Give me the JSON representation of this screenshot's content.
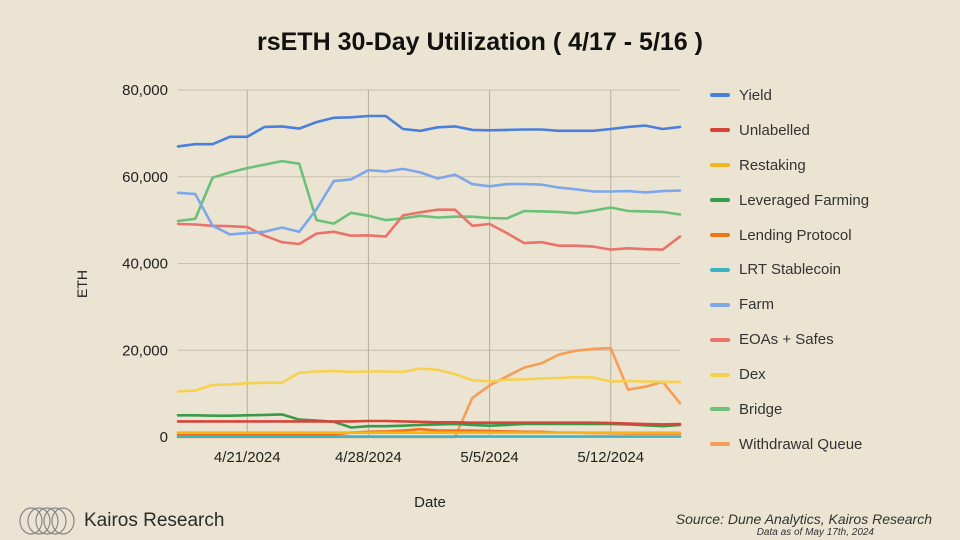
{
  "chart_data": {
    "type": "line",
    "title": "rsETH 30-Day Utilization ( 4/17 - 5/16 )",
    "xlabel": "Date",
    "ylabel": "ETH",
    "ylim": [
      0,
      80000
    ],
    "yticks": [
      0,
      20000,
      40000,
      60000,
      80000
    ],
    "ytick_labels": [
      "0",
      "20,000",
      "40,000",
      "60,000",
      "80,000"
    ],
    "x_start": "2024-04-17",
    "x_end": "2024-05-16",
    "x": [
      "4/17",
      "4/18",
      "4/19",
      "4/20",
      "4/21",
      "4/22",
      "4/23",
      "4/24",
      "4/25",
      "4/26",
      "4/27",
      "4/28",
      "4/29",
      "4/30",
      "5/1",
      "5/2",
      "5/3",
      "5/4",
      "5/5",
      "5/6",
      "5/7",
      "5/8",
      "5/9",
      "5/10",
      "5/11",
      "5/12",
      "5/13",
      "5/14",
      "5/15",
      "5/16"
    ],
    "xticks": [
      "4/21/2024",
      "4/28/2024",
      "5/5/2024",
      "5/12/2024"
    ],
    "grid": true,
    "legend_position": "right",
    "series": [
      {
        "name": "Yield",
        "color": "#4a7fdb",
        "values": [
          67000,
          67500,
          67500,
          69200,
          69200,
          71500,
          71600,
          71100,
          72600,
          73600,
          73700,
          74000,
          74000,
          71000,
          70600,
          71400,
          71600,
          70800,
          70700,
          70800,
          70900,
          70900,
          70600,
          70600,
          70600,
          71000,
          71500,
          71800,
          71000,
          71500
        ]
      },
      {
        "name": "Unlabelled",
        "color": "#d7443a",
        "values": [
          3600,
          3600,
          3600,
          3600,
          3600,
          3600,
          3600,
          3600,
          3600,
          3600,
          3600,
          3700,
          3700,
          3600,
          3500,
          3400,
          3400,
          3300,
          3300,
          3300,
          3300,
          3300,
          3300,
          3300,
          3300,
          3200,
          3100,
          3000,
          2900,
          3000
        ]
      },
      {
        "name": "Restaking",
        "color": "#f3b51a",
        "values": [
          1000,
          1000,
          1000,
          1000,
          1000,
          1000,
          1000,
          1000,
          1000,
          1000,
          1000,
          1000,
          1000,
          1000,
          1000,
          1000,
          1000,
          1000,
          1000,
          1000,
          1000,
          1000,
          1000,
          1000,
          1000,
          1000,
          1000,
          1000,
          1000,
          1000
        ]
      },
      {
        "name": "Leveraged Farming",
        "color": "#3a9a4c",
        "values": [
          5000,
          5000,
          4900,
          4900,
          5000,
          5100,
          5200,
          4000,
          3800,
          3500,
          2200,
          2500,
          2500,
          2600,
          2800,
          2900,
          3000,
          2800,
          2600,
          2800,
          3000,
          3000,
          3000,
          3000,
          3000,
          3000,
          2900,
          2700,
          2500,
          2800
        ]
      },
      {
        "name": "Lending Protocol",
        "color": "#ef7619",
        "values": [
          600,
          600,
          600,
          600,
          600,
          600,
          600,
          600,
          600,
          600,
          1000,
          1200,
          1300,
          1500,
          1800,
          1500,
          1500,
          1500,
          1400,
          1300,
          1200,
          1200,
          1000,
          1000,
          900,
          900,
          800,
          800,
          800,
          800
        ]
      },
      {
        "name": "LRT Stablecoin",
        "color": "#3cb4c4",
        "values": [
          100,
          100,
          100,
          100,
          100,
          100,
          100,
          100,
          100,
          100,
          100,
          100,
          100,
          100,
          100,
          100,
          100,
          100,
          100,
          100,
          100,
          100,
          100,
          100,
          100,
          100,
          100,
          100,
          100,
          100
        ]
      },
      {
        "name": "Farm",
        "color": "#7ea7ea",
        "values": [
          56300,
          56000,
          48700,
          46700,
          47000,
          47300,
          48300,
          47300,
          52500,
          59000,
          59400,
          61500,
          61200,
          61800,
          61000,
          59600,
          60500,
          58300,
          57800,
          58300,
          58300,
          58200,
          57500,
          57100,
          56600,
          56600,
          56700,
          56400,
          56700,
          56800
        ]
      },
      {
        "name": "EOAs + Safes",
        "color": "#e9736a",
        "values": [
          49100,
          49000,
          48700,
          48600,
          48400,
          46400,
          44900,
          44500,
          46900,
          47300,
          46400,
          46500,
          46200,
          51100,
          51800,
          52400,
          52400,
          48700,
          49100,
          47000,
          44700,
          44900,
          44100,
          44100,
          43900,
          43200,
          43500,
          43300,
          43200,
          46200
        ]
      },
      {
        "name": "Dex",
        "color": "#f6d04f",
        "values": [
          10500,
          10700,
          12000,
          12100,
          12400,
          12500,
          12500,
          14800,
          15100,
          15200,
          15000,
          15100,
          15100,
          15000,
          15800,
          15500,
          14500,
          13100,
          12800,
          13200,
          13300,
          13500,
          13600,
          13800,
          13700,
          12800,
          12900,
          12800,
          12700,
          12700
        ]
      },
      {
        "name": "Bridge",
        "color": "#6cc079",
        "values": [
          49800,
          50300,
          59800,
          61000,
          62000,
          62800,
          63600,
          63000,
          50000,
          49200,
          51700,
          51000,
          50000,
          50400,
          51000,
          50600,
          50800,
          50800,
          50500,
          50400,
          52100,
          52000,
          51900,
          51600,
          52200,
          52900,
          52100,
          52000,
          51900,
          51300
        ]
      },
      {
        "name": "Withdrawal Queue",
        "color": "#f59e57",
        "values": [
          0,
          0,
          0,
          0,
          0,
          0,
          0,
          0,
          0,
          0,
          0,
          0,
          0,
          0,
          0,
          0,
          0,
          9000,
          11900,
          14000,
          16000,
          17000,
          19000,
          19900,
          20300,
          20500,
          10900,
          11600,
          12700,
          7800
        ]
      }
    ]
  },
  "brand": {
    "name": "Kairos Research"
  },
  "source": {
    "text": "Source: Dune Analytics, Kairos Research",
    "asof": "Data as of May 17th, 2024"
  }
}
